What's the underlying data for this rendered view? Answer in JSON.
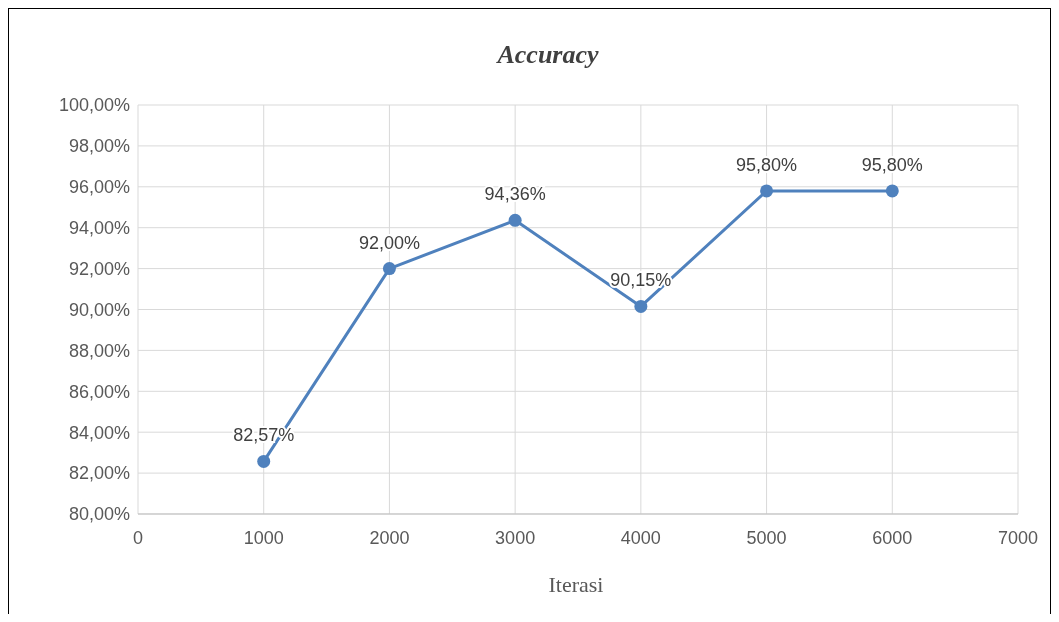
{
  "chart_data": {
    "type": "line",
    "title": "Accuracy",
    "xlabel": "Iterasi",
    "x": [
      1000,
      2000,
      3000,
      4000,
      5000,
      6000
    ],
    "series": [
      {
        "color": "#4f81bd",
        "values": [
          82.57,
          92.0,
          94.36,
          90.15,
          95.8,
          95.8
        ],
        "value_labels": [
          "82,57%",
          "92,00%",
          "94,36%",
          "90,15%",
          "95,80%",
          "95,80%"
        ]
      }
    ],
    "xlim": [
      0,
      7000
    ],
    "xticks": [
      0,
      1000,
      2000,
      3000,
      4000,
      5000,
      6000,
      7000
    ],
    "ylim": [
      80,
      100
    ],
    "yticks": [
      {
        "value": 80,
        "label": "80,00%"
      },
      {
        "value": 82,
        "label": "82,00%"
      },
      {
        "value": 84,
        "label": "84,00%"
      },
      {
        "value": 86,
        "label": "86,00%"
      },
      {
        "value": 88,
        "label": "88,00%"
      },
      {
        "value": 90,
        "label": "90,00%"
      },
      {
        "value": 92,
        "label": "92,00%"
      },
      {
        "value": 94,
        "label": "94,00%"
      },
      {
        "value": 96,
        "label": "96,00%"
      },
      {
        "value": 98,
        "label": "98,00%"
      },
      {
        "value": 100,
        "label": "100,00%"
      }
    ],
    "grid": true,
    "marker": "circle",
    "line_style": "solid"
  }
}
